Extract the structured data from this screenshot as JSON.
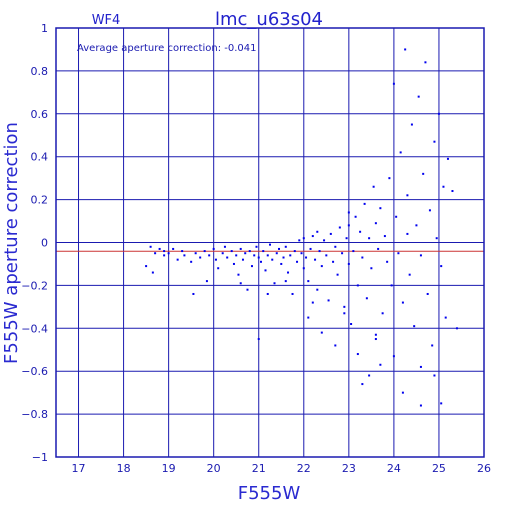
{
  "chart_data": {
    "type": "scatter",
    "panel_label": "WF4",
    "title": "lmc_u63s04",
    "xlabel": "F555W",
    "ylabel": "F555W aperture correction",
    "annotation": "Average aperture correction: -0.041",
    "xlim": [
      16.5,
      26
    ],
    "ylim": [
      -1,
      1
    ],
    "xticks": [
      17,
      18,
      19,
      20,
      21,
      22,
      23,
      24,
      25,
      26
    ],
    "yticks": [
      -1,
      -0.8,
      -0.6,
      -0.4,
      -0.2,
      0,
      0.2,
      0.4,
      0.6,
      0.8,
      1
    ],
    "grid": true,
    "average_line": {
      "y": -0.041,
      "color": "#cc3333"
    },
    "point_color": "#0000ee",
    "axis_color": "#1a1ab0",
    "series": [
      {
        "points": [
          [
            18.6,
            -0.02
          ],
          [
            18.7,
            -0.05
          ],
          [
            18.8,
            -0.03
          ],
          [
            18.9,
            -0.06
          ],
          [
            18.5,
            -0.11
          ],
          [
            18.65,
            -0.14
          ],
          [
            18.9,
            -0.04
          ],
          [
            19.0,
            -0.05
          ],
          [
            19.1,
            -0.03
          ],
          [
            19.2,
            -0.08
          ],
          [
            19.3,
            -0.04
          ],
          [
            19.35,
            -0.06
          ],
          [
            19.5,
            -0.09
          ],
          [
            19.55,
            -0.24
          ],
          [
            19.6,
            -0.05
          ],
          [
            19.7,
            -0.07
          ],
          [
            19.8,
            -0.04
          ],
          [
            19.85,
            -0.18
          ],
          [
            19.9,
            -0.06
          ],
          [
            20.0,
            -0.03
          ],
          [
            20.05,
            -0.08
          ],
          [
            20.1,
            -0.12
          ],
          [
            20.2,
            -0.05
          ],
          [
            20.25,
            -0.02
          ],
          [
            20.3,
            -0.07
          ],
          [
            20.4,
            -0.04
          ],
          [
            20.45,
            -0.1
          ],
          [
            20.5,
            -0.06
          ],
          [
            20.55,
            -0.15
          ],
          [
            20.6,
            -0.03
          ],
          [
            20.65,
            -0.08
          ],
          [
            20.7,
            -0.05
          ],
          [
            20.75,
            -0.22
          ],
          [
            20.8,
            -0.04
          ],
          [
            20.85,
            -0.11
          ],
          [
            20.9,
            -0.06
          ],
          [
            20.95,
            -0.02
          ],
          [
            21.0,
            -0.07
          ],
          [
            21.0,
            -0.45
          ],
          [
            21.05,
            -0.09
          ],
          [
            21.1,
            -0.04
          ],
          [
            21.15,
            -0.13
          ],
          [
            21.2,
            -0.06
          ],
          [
            21.25,
            -0.01
          ],
          [
            21.3,
            -0.08
          ],
          [
            21.35,
            -0.19
          ],
          [
            21.4,
            -0.05
          ],
          [
            21.45,
            -0.03
          ],
          [
            21.5,
            -0.1
          ],
          [
            21.55,
            -0.07
          ],
          [
            21.6,
            -0.02
          ],
          [
            21.65,
            -0.14
          ],
          [
            21.7,
            -0.06
          ],
          [
            21.75,
            -0.24
          ],
          [
            21.8,
            -0.04
          ],
          [
            21.85,
            -0.09
          ],
          [
            21.9,
            0.01
          ],
          [
            21.95,
            -0.05
          ],
          [
            22.0,
            -0.12
          ],
          [
            22.0,
            0.02
          ],
          [
            22.05,
            -0.07
          ],
          [
            22.1,
            -0.18
          ],
          [
            22.15,
            -0.03
          ],
          [
            22.2,
            0.03
          ],
          [
            22.25,
            -0.08
          ],
          [
            22.3,
            -0.22
          ],
          [
            22.3,
            0.05
          ],
          [
            22.35,
            -0.04
          ],
          [
            22.4,
            -0.11
          ],
          [
            22.45,
            0.01
          ],
          [
            22.5,
            -0.06
          ],
          [
            22.55,
            -0.27
          ],
          [
            22.6,
            0.04
          ],
          [
            22.65,
            -0.09
          ],
          [
            22.7,
            -0.02
          ],
          [
            22.75,
            -0.15
          ],
          [
            22.8,
            0.07
          ],
          [
            22.85,
            -0.05
          ],
          [
            22.9,
            -0.3
          ],
          [
            22.95,
            0.02
          ],
          [
            23.0,
            -0.1
          ],
          [
            23.0,
            0.08
          ],
          [
            23.05,
            -0.38
          ],
          [
            23.1,
            -0.04
          ],
          [
            23.15,
            0.12
          ],
          [
            23.2,
            -0.2
          ],
          [
            23.25,
            0.05
          ],
          [
            23.3,
            -0.07
          ],
          [
            23.35,
            0.18
          ],
          [
            23.4,
            -0.26
          ],
          [
            23.45,
            0.02
          ],
          [
            23.5,
            -0.12
          ],
          [
            23.55,
            0.26
          ],
          [
            23.6,
            -0.45
          ],
          [
            23.6,
            0.09
          ],
          [
            23.65,
            -0.03
          ],
          [
            23.7,
            0.16
          ],
          [
            23.75,
            -0.33
          ],
          [
            23.8,
            0.03
          ],
          [
            23.85,
            -0.09
          ],
          [
            23.9,
            0.3
          ],
          [
            23.95,
            -0.2
          ],
          [
            24.0,
            0.74
          ],
          [
            24.0,
            -0.53
          ],
          [
            24.05,
            0.12
          ],
          [
            24.1,
            -0.05
          ],
          [
            24.15,
            0.42
          ],
          [
            24.2,
            -0.28
          ],
          [
            24.25,
            0.9
          ],
          [
            24.3,
            0.22
          ],
          [
            24.35,
            -0.15
          ],
          [
            24.4,
            0.55
          ],
          [
            24.45,
            -0.39
          ],
          [
            24.5,
            0.08
          ],
          [
            24.55,
            0.68
          ],
          [
            24.6,
            -0.06
          ],
          [
            24.65,
            0.32
          ],
          [
            24.7,
            0.84
          ],
          [
            24.75,
            -0.24
          ],
          [
            24.8,
            0.15
          ],
          [
            24.85,
            -0.48
          ],
          [
            24.9,
            0.47
          ],
          [
            24.95,
            0.02
          ],
          [
            25.0,
            0.6
          ],
          [
            25.05,
            -0.11
          ],
          [
            25.1,
            0.26
          ],
          [
            25.15,
            -0.35
          ],
          [
            25.2,
            0.39
          ],
          [
            25.3,
            0.24
          ],
          [
            25.4,
            -0.4
          ],
          [
            22.1,
            -0.35
          ],
          [
            22.4,
            -0.42
          ],
          [
            22.7,
            -0.48
          ],
          [
            22.9,
            -0.33
          ],
          [
            23.2,
            -0.52
          ],
          [
            23.45,
            -0.62
          ],
          [
            23.7,
            -0.57
          ],
          [
            24.2,
            -0.7
          ],
          [
            24.6,
            -0.58
          ],
          [
            24.9,
            -0.62
          ],
          [
            25.05,
            -0.75
          ],
          [
            24.6,
            -0.76
          ],
          [
            23.3,
            -0.66
          ],
          [
            23.6,
            -0.43
          ],
          [
            22.2,
            -0.28
          ],
          [
            21.6,
            -0.18
          ],
          [
            21.2,
            -0.24
          ],
          [
            20.6,
            -0.19
          ],
          [
            24.3,
            0.04
          ],
          [
            23.0,
            0.14
          ]
        ]
      }
    ]
  }
}
